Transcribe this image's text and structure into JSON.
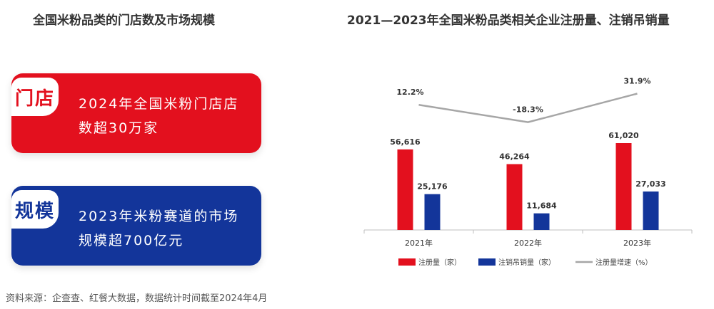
{
  "left": {
    "title": "全国米粉品类的门店数及市场规模",
    "cards": [
      {
        "tag": "门店",
        "text": "2024年全国米粉门店店数超30万家"
      },
      {
        "tag": "规模",
        "text": "2023年米粉赛道的市场规模超700亿元"
      }
    ]
  },
  "source": "资料来源：企查查、红餐大数据，数据统计时间截至2024年4月",
  "chart_data": {
    "type": "bar",
    "title": "2021—2023年全国米粉品类相关企业注册量、注销吊销量",
    "categories": [
      "2021年",
      "2022年",
      "2023年"
    ],
    "series": [
      {
        "name": "注册量（家）",
        "type": "bar",
        "color": "#e3101e",
        "values": [
          56616,
          46264,
          61020
        ],
        "labels": [
          "56,616",
          "46,264",
          "61,020"
        ]
      },
      {
        "name": "注销吊销量（家）",
        "type": "bar",
        "color": "#13359a",
        "values": [
          25176,
          11684,
          27033
        ],
        "labels": [
          "25,176",
          "11,684",
          "27,033"
        ]
      },
      {
        "name": "注册量增速（%）",
        "type": "line",
        "color": "#a6a6a6",
        "values": [
          12.2,
          -18.3,
          31.9
        ],
        "labels": [
          "12.2%",
          "-18.3%",
          "31.9%"
        ]
      }
    ],
    "legend_position": "bottom",
    "grid": false
  }
}
